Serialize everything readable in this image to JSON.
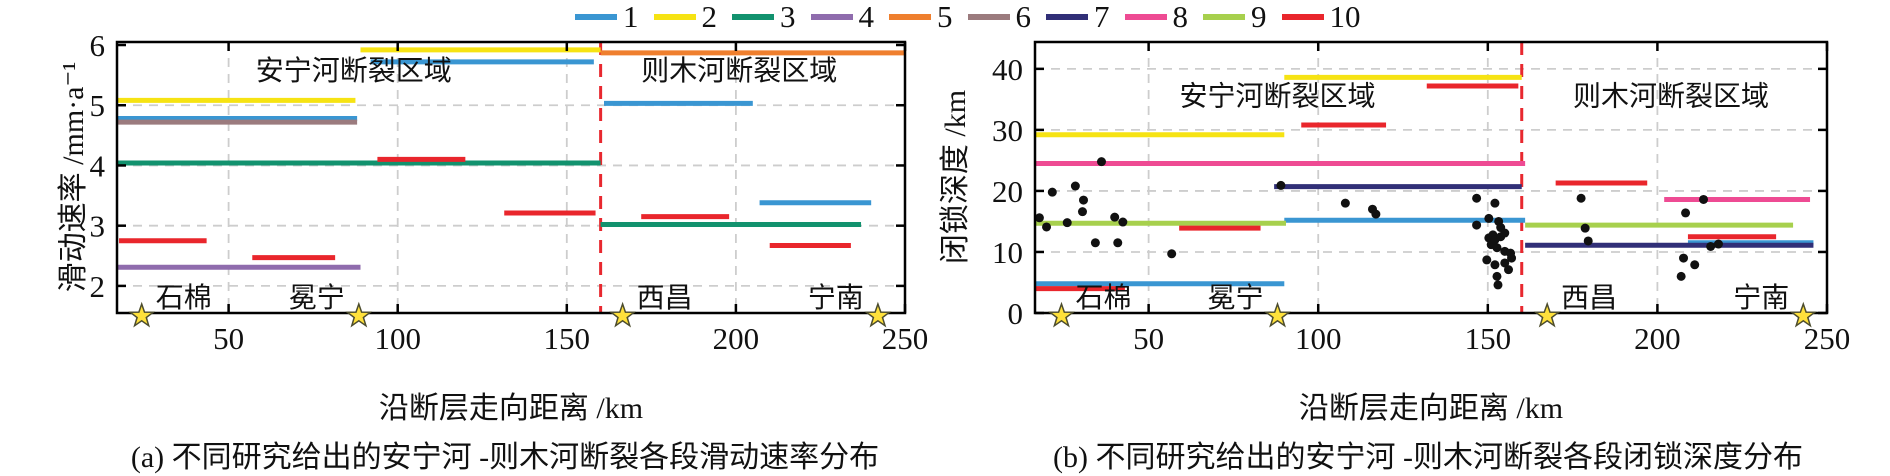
{
  "figure": {
    "bg": "#ffffff",
    "captions": {
      "a": "(a) 不同研究给出的安宁河 -则木河断裂各段滑动速率分布",
      "b": "(b) 不同研究给出的安宁河 -则木河断裂各段闭锁深度分布"
    }
  },
  "legend": {
    "items": [
      {
        "label": "1",
        "color": "#3a96d2"
      },
      {
        "label": "2",
        "color": "#f6e313"
      },
      {
        "label": "3",
        "color": "#12926e"
      },
      {
        "label": "4",
        "color": "#8f6cad"
      },
      {
        "label": "5",
        "color": "#ef7f2e"
      },
      {
        "label": "6",
        "color": "#9b7b7e"
      },
      {
        "label": "7",
        "color": "#312f77"
      },
      {
        "label": "8",
        "color": "#ee4b93"
      },
      {
        "label": "9",
        "color": "#a7d04d"
      },
      {
        "label": "10",
        "color": "#e9262c"
      }
    ]
  },
  "style_colors": {
    "grid": "#cdcdcd",
    "axis": "#000000",
    "divider": "#e8282f",
    "dot": "#111111",
    "star_fill": "#ffe13b",
    "star_stroke": "#4d4d2e"
  },
  "chart_data": [
    {
      "id": "a",
      "type": "line",
      "xlabel": "沿断层走向距离 /km",
      "ylabel": "滑动速率 /mm·a⁻¹",
      "xlim": [
        17,
        250
      ],
      "ylim": [
        1.55,
        6.05
      ],
      "xticks": [
        50,
        100,
        150,
        200,
        250
      ],
      "yticks": [
        2,
        3,
        4,
        5,
        6
      ],
      "divider_x": 160,
      "regions": [
        {
          "text": "安宁河断裂区域",
          "x": 87,
          "y": 5.42
        },
        {
          "text": "则木河断裂区域",
          "x": 201,
          "y": 5.42
        }
      ],
      "cities": [
        {
          "name": "石棉",
          "x": 24.3,
          "label_side": "right"
        },
        {
          "name": "冕宁",
          "x": 88.5,
          "label_side": "left"
        },
        {
          "name": "西昌",
          "x": 166.5,
          "label_side": "right"
        },
        {
          "name": "宁南",
          "x": 242,
          "label_side": "left"
        }
      ],
      "segments": [
        {
          "series": "1",
          "x1": 17,
          "x2": 88,
          "y": 4.78
        },
        {
          "series": "1",
          "x1": 92,
          "x2": 158,
          "y": 5.72
        },
        {
          "series": "1",
          "x1": 161,
          "x2": 205,
          "y": 5.03
        },
        {
          "series": "1",
          "x1": 207,
          "x2": 240,
          "y": 3.38
        },
        {
          "series": "2",
          "x1": 17,
          "x2": 87.5,
          "y": 5.08
        },
        {
          "series": "2",
          "x1": 89,
          "x2": 160,
          "y": 5.92
        },
        {
          "series": "3",
          "x1": 17,
          "x2": 160,
          "y": 4.04
        },
        {
          "series": "3",
          "x1": 160,
          "x2": 237,
          "y": 3.02
        },
        {
          "series": "4",
          "x1": 17,
          "x2": 89,
          "y": 2.31
        },
        {
          "series": "5",
          "x1": 160,
          "x2": 250,
          "y": 5.87
        },
        {
          "series": "6",
          "x1": 17,
          "x2": 88,
          "y": 4.72
        },
        {
          "series": "10",
          "x1": 17.6,
          "x2": 43.5,
          "y": 2.75
        },
        {
          "series": "10",
          "x1": 57,
          "x2": 81.5,
          "y": 2.47
        },
        {
          "series": "10",
          "x1": 94,
          "x2": 120,
          "y": 4.1
        },
        {
          "series": "10",
          "x1": 131.5,
          "x2": 158.5,
          "y": 3.21
        },
        {
          "series": "10",
          "x1": 172,
          "x2": 198,
          "y": 3.15
        },
        {
          "series": "10",
          "x1": 210,
          "x2": 234,
          "y": 2.67
        }
      ],
      "points": []
    },
    {
      "id": "b",
      "type": "line",
      "xlabel": "沿断层走向距离 /km",
      "ylabel": "闭锁深度 /km",
      "xlim": [
        16.5,
        250
      ],
      "ylim": [
        0,
        44.4
      ],
      "xticks": [
        50,
        100,
        150,
        200,
        250
      ],
      "yticks": [
        0,
        10,
        20,
        30,
        40
      ],
      "divider_x": 160,
      "regions": [
        {
          "text": "安宁河断裂区域",
          "x": 88,
          "y": 34
        },
        {
          "text": "则木河断裂区域",
          "x": 204,
          "y": 34
        }
      ],
      "cities": [
        {
          "name": "石棉",
          "x": 24.3,
          "label_side": "right"
        },
        {
          "name": "冕宁",
          "x": 88,
          "label_side": "left"
        },
        {
          "name": "西昌",
          "x": 167.5,
          "label_side": "right"
        },
        {
          "name": "宁南",
          "x": 243,
          "label_side": "left"
        }
      ],
      "segments": [
        {
          "series": "1",
          "x1": 16.5,
          "x2": 90,
          "y": 4.8
        },
        {
          "series": "1",
          "x1": 90,
          "x2": 161,
          "y": 15.2
        },
        {
          "series": "1",
          "x1": 209,
          "x2": 246,
          "y": 11.5
        },
        {
          "series": "2",
          "x1": 16.5,
          "x2": 90,
          "y": 29.2
        },
        {
          "series": "2",
          "x1": 90,
          "x2": 160,
          "y": 38.6
        },
        {
          "series": "7",
          "x1": 87,
          "x2": 160,
          "y": 20.7
        },
        {
          "series": "7",
          "x1": 161,
          "x2": 246,
          "y": 11.1
        },
        {
          "series": "8",
          "x1": 16.5,
          "x2": 161,
          "y": 24.5
        },
        {
          "series": "8",
          "x1": 202,
          "x2": 245,
          "y": 18.6
        },
        {
          "series": "9",
          "x1": 16.5,
          "x2": 90.5,
          "y": 14.7
        },
        {
          "series": "9",
          "x1": 161,
          "x2": 240,
          "y": 14.4
        },
        {
          "series": "10",
          "x1": 16.5,
          "x2": 43,
          "y": 4.0
        },
        {
          "series": "10",
          "x1": 59,
          "x2": 83,
          "y": 13.9
        },
        {
          "series": "10",
          "x1": 95,
          "x2": 120,
          "y": 30.8
        },
        {
          "series": "10",
          "x1": 132,
          "x2": 159,
          "y": 37.2
        },
        {
          "series": "10",
          "x1": 170,
          "x2": 197,
          "y": 21.3
        },
        {
          "series": "10",
          "x1": 209,
          "x2": 235,
          "y": 12.5
        }
      ],
      "points": [
        [
          17.8,
          15.6
        ],
        [
          19.9,
          14.1
        ],
        [
          21.6,
          19.8
        ],
        [
          26,
          14.8
        ],
        [
          28.4,
          20.8
        ],
        [
          30.5,
          16.6
        ],
        [
          30.8,
          18.5
        ],
        [
          34.3,
          11.5
        ],
        [
          36.1,
          24.8
        ],
        [
          40,
          15.7
        ],
        [
          40.9,
          11.5
        ],
        [
          42.4,
          14.9
        ],
        [
          56.8,
          9.7
        ],
        [
          89,
          20.9
        ],
        [
          108,
          18
        ],
        [
          116,
          17
        ],
        [
          117,
          16.2
        ],
        [
          146.7,
          18.8
        ],
        [
          146.7,
          14.4
        ],
        [
          149.7,
          8.7
        ],
        [
          150.3,
          15.5
        ],
        [
          150.3,
          12.3
        ],
        [
          151,
          11.2
        ],
        [
          151.5,
          12.8
        ],
        [
          152.1,
          18
        ],
        [
          152.1,
          12
        ],
        [
          152.1,
          7.9
        ],
        [
          152.7,
          10.7
        ],
        [
          152.7,
          6
        ],
        [
          153,
          4.6
        ],
        [
          153.2,
          15
        ],
        [
          153.8,
          14
        ],
        [
          153.8,
          12.5
        ],
        [
          155,
          13.1
        ],
        [
          155,
          10.1
        ],
        [
          155,
          8.2
        ],
        [
          156.1,
          7.1
        ],
        [
          156.7,
          9.8
        ],
        [
          157,
          9
        ],
        [
          177.5,
          18.8
        ],
        [
          178.7,
          13.9
        ],
        [
          179.6,
          11.8
        ],
        [
          207,
          6
        ],
        [
          207.7,
          9
        ],
        [
          208.3,
          16.4
        ],
        [
          211,
          7.9
        ],
        [
          213.6,
          18.6
        ],
        [
          215.7,
          10.9
        ],
        [
          218,
          11.3
        ]
      ]
    }
  ]
}
